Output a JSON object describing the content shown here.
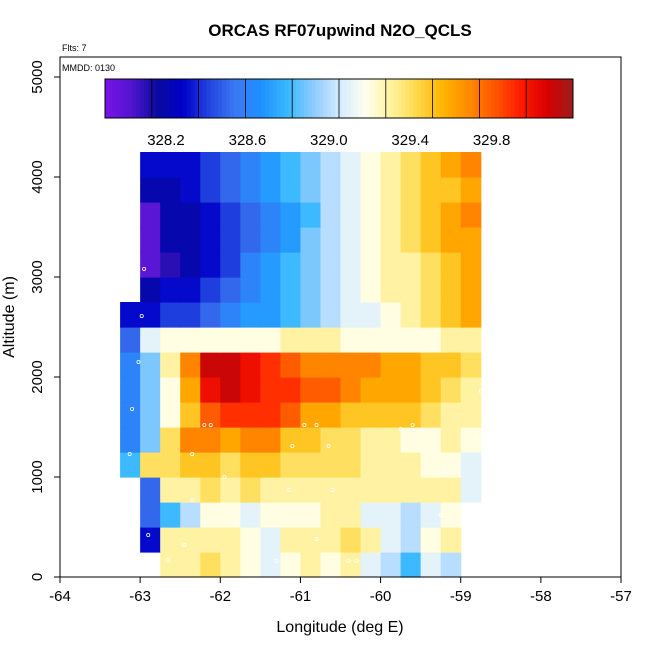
{
  "chart_data": {
    "type": "heatmap",
    "title": "ORCAS RF07upwind N2O_QCLS",
    "flights_label": "Flts: 7",
    "date_label": "MMDD: 0130",
    "xlabel": "Longitude (deg E)",
    "ylabel": "Altitude (m)",
    "xlim": [
      -64,
      -57
    ],
    "ylim": [
      0,
      5200
    ],
    "xticks": [
      "-64",
      "-63",
      "-62",
      "-61",
      "-60",
      "-59",
      "-58",
      "-57"
    ],
    "yticks": [
      "0",
      "1000",
      "2000",
      "3000",
      "4000",
      "5000"
    ],
    "colorbar": {
      "range": [
        327.9,
        330.2
      ],
      "tick_values": [
        328.2,
        328.6,
        329.0,
        329.4,
        329.8
      ],
      "tick_labels": [
        "328.2",
        "328.6",
        "329.0",
        "329.4",
        "329.8"
      ],
      "colors": [
        "#7a12e8",
        "#5216cf",
        "#0a0aa0",
        "#0000c8",
        "#2244e0",
        "#3a78f2",
        "#1e90ff",
        "#38b8ff",
        "#8ccaff",
        "#d2eaff",
        "#fffff0",
        "#fff2a0",
        "#ffd84a",
        "#ffb400",
        "#ff8a00",
        "#ff5500",
        "#ff1a00",
        "#d80000",
        "#9a1c1c"
      ]
    },
    "grid": {
      "lon0": -63.25,
      "dlon": 0.25,
      "alt0": 0,
      "dalt": 250,
      "rows": [
        [
          null,
          null,
          329.3,
          329.3,
          329.4,
          329.3,
          329.2,
          329.1,
          329.2,
          329.3,
          329.2,
          329.3,
          329.1,
          329.0,
          328.8,
          329.1,
          329.0,
          null,
          null
        ],
        [
          null,
          328.3,
          329.3,
          329.3,
          329.3,
          329.3,
          329.2,
          329.1,
          329.3,
          329.3,
          329.3,
          329.4,
          329.3,
          329.1,
          329.0,
          329.2,
          329.3,
          null,
          null
        ],
        [
          null,
          328.5,
          328.8,
          329.0,
          329.2,
          329.2,
          329.1,
          329.2,
          329.2,
          329.2,
          329.3,
          329.3,
          329.1,
          329.1,
          329.0,
          329.1,
          329.2,
          null,
          null
        ],
        [
          null,
          328.5,
          329.3,
          329.3,
          329.4,
          329.3,
          329.4,
          329.3,
          329.3,
          329.3,
          329.3,
          329.3,
          329.3,
          329.3,
          329.3,
          329.3,
          329.3,
          329.1,
          null
        ],
        [
          328.8,
          329.4,
          329.4,
          329.5,
          329.5,
          329.4,
          329.5,
          329.5,
          329.4,
          329.4,
          329.4,
          329.4,
          329.3,
          329.3,
          329.3,
          329.2,
          329.2,
          329.1,
          null
        ],
        [
          328.6,
          328.9,
          329.4,
          329.7,
          329.7,
          329.6,
          329.7,
          329.7,
          329.5,
          329.5,
          329.4,
          329.4,
          329.3,
          329.3,
          329.2,
          329.2,
          329.3,
          329.2,
          null
        ],
        [
          328.6,
          328.9,
          329.2,
          329.5,
          329.8,
          329.9,
          329.9,
          329.9,
          329.8,
          329.6,
          329.6,
          329.5,
          329.5,
          329.5,
          329.5,
          329.4,
          329.3,
          329.3,
          null
        ],
        [
          328.6,
          328.9,
          329.2,
          329.6,
          330.0,
          330.1,
          330.0,
          329.9,
          329.9,
          329.8,
          329.8,
          329.7,
          329.6,
          329.6,
          329.6,
          329.5,
          329.4,
          329.3,
          null
        ],
        [
          328.6,
          328.9,
          329.3,
          329.7,
          330.1,
          330.1,
          330.0,
          329.9,
          329.8,
          329.7,
          329.7,
          329.7,
          329.7,
          329.6,
          329.6,
          329.5,
          329.5,
          329.4,
          null
        ],
        [
          328.5,
          329.1,
          329.2,
          329.2,
          329.2,
          329.2,
          329.2,
          329.2,
          329.3,
          329.3,
          329.3,
          329.2,
          329.2,
          329.2,
          329.2,
          329.2,
          329.3,
          329.3,
          null
        ],
        [
          328.3,
          328.3,
          328.4,
          328.4,
          328.5,
          328.6,
          328.7,
          328.7,
          328.8,
          328.9,
          329.0,
          329.1,
          329.1,
          329.2,
          329.3,
          329.4,
          329.5,
          329.6,
          null
        ],
        [
          null,
          328.2,
          328.3,
          328.3,
          328.4,
          328.5,
          328.6,
          328.7,
          328.8,
          328.9,
          329.0,
          329.1,
          329.2,
          329.3,
          329.3,
          329.4,
          329.5,
          329.6,
          null
        ],
        [
          null,
          328.0,
          328.1,
          328.2,
          328.3,
          328.4,
          328.6,
          328.7,
          328.8,
          328.9,
          329.0,
          329.1,
          329.2,
          329.3,
          329.3,
          329.4,
          329.5,
          329.6,
          null
        ],
        [
          null,
          328.0,
          328.2,
          328.2,
          328.3,
          328.4,
          328.5,
          328.6,
          328.7,
          328.9,
          329.0,
          329.1,
          329.2,
          329.3,
          329.4,
          329.5,
          329.6,
          329.6,
          null
        ],
        [
          null,
          328.0,
          328.2,
          328.2,
          328.3,
          328.4,
          328.5,
          328.6,
          328.7,
          328.8,
          329.0,
          329.1,
          329.2,
          329.3,
          329.4,
          329.5,
          329.6,
          329.7,
          null
        ],
        [
          null,
          328.2,
          328.2,
          328.3,
          328.4,
          328.5,
          328.6,
          328.7,
          328.8,
          328.9,
          329.0,
          329.1,
          329.2,
          329.3,
          329.4,
          329.5,
          329.5,
          329.6,
          null
        ],
        [
          null,
          328.3,
          328.3,
          328.3,
          328.4,
          328.5,
          328.6,
          328.7,
          328.8,
          328.9,
          329.0,
          329.1,
          329.2,
          329.3,
          329.4,
          329.5,
          329.6,
          329.7,
          null
        ]
      ]
    },
    "points": [
      [
        -63.05,
        3560
      ],
      [
        -62.95,
        3080
      ],
      [
        -62.98,
        2610
      ],
      [
        -63.02,
        2150
      ],
      [
        -63.1,
        1680
      ],
      [
        -63.13,
        1230
      ],
      [
        -63.1,
        790
      ],
      [
        -62.2,
        1520
      ],
      [
        -62.12,
        1520
      ],
      [
        -62.35,
        1230
      ],
      [
        -61.95,
        1000
      ],
      [
        -61.1,
        1310
      ],
      [
        -60.95,
        1520
      ],
      [
        -60.8,
        1520
      ],
      [
        -60.65,
        1310
      ],
      [
        -61.15,
        870
      ],
      [
        -60.6,
        870
      ],
      [
        -59.75,
        1480
      ],
      [
        -59.6,
        1520
      ],
      [
        -59.5,
        1460
      ],
      [
        -59.2,
        1060
      ],
      [
        -58.8,
        1380
      ],
      [
        -58.65,
        2790
      ],
      [
        -58.55,
        3270
      ],
      [
        -58.6,
        3720
      ],
      [
        -62.65,
        170
      ],
      [
        -62.45,
        320
      ],
      [
        -61.8,
        530
      ],
      [
        -61.3,
        160
      ],
      [
        -61.15,
        160
      ],
      [
        -60.8,
        380
      ],
      [
        -60.4,
        160
      ],
      [
        -60.3,
        160
      ],
      [
        -59.25,
        620
      ],
      [
        -58.95,
        160
      ],
      [
        -58.85,
        160
      ],
      [
        -58.7,
        160
      ],
      [
        -62.9,
        420
      ],
      [
        -62.35,
        770
      ],
      [
        -58.75,
        1860
      ]
    ]
  }
}
